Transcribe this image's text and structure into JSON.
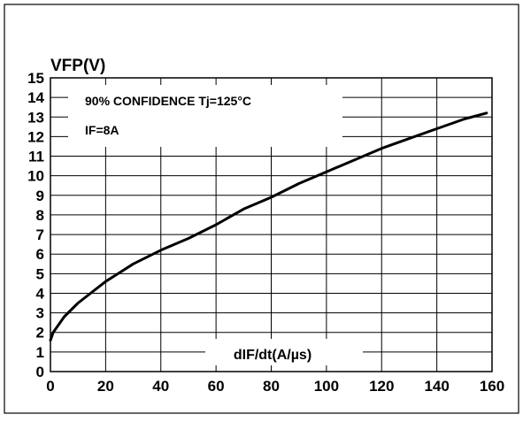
{
  "chart_data": {
    "type": "line",
    "ylabel": "VFP(V)",
    "xlabel": "dIF/dt(A/µs)",
    "xlim": [
      0,
      160
    ],
    "ylim": [
      0,
      15
    ],
    "xticks": [
      0,
      20,
      40,
      60,
      80,
      100,
      120,
      140,
      160
    ],
    "yticks": [
      0,
      1,
      2,
      3,
      4,
      5,
      6,
      7,
      8,
      9,
      10,
      11,
      12,
      13,
      14,
      15
    ],
    "grid": true,
    "annotations": [
      "90% CONFIDENCE Tj=125°C",
      "IF=8A"
    ],
    "series": [
      {
        "x": [
          0,
          1,
          5,
          10,
          20,
          30,
          40,
          50,
          60,
          70,
          80,
          90,
          100,
          110,
          120,
          130,
          140,
          150,
          158
        ],
        "values": [
          1.6,
          2.0,
          2.8,
          3.5,
          4.6,
          5.5,
          6.2,
          6.8,
          7.5,
          8.3,
          8.9,
          9.6,
          10.2,
          10.8,
          11.4,
          11.9,
          12.4,
          12.9,
          13.2
        ]
      }
    ]
  },
  "colors": {
    "line": "#000000",
    "grid": "#000000",
    "background": "#ffffff"
  }
}
